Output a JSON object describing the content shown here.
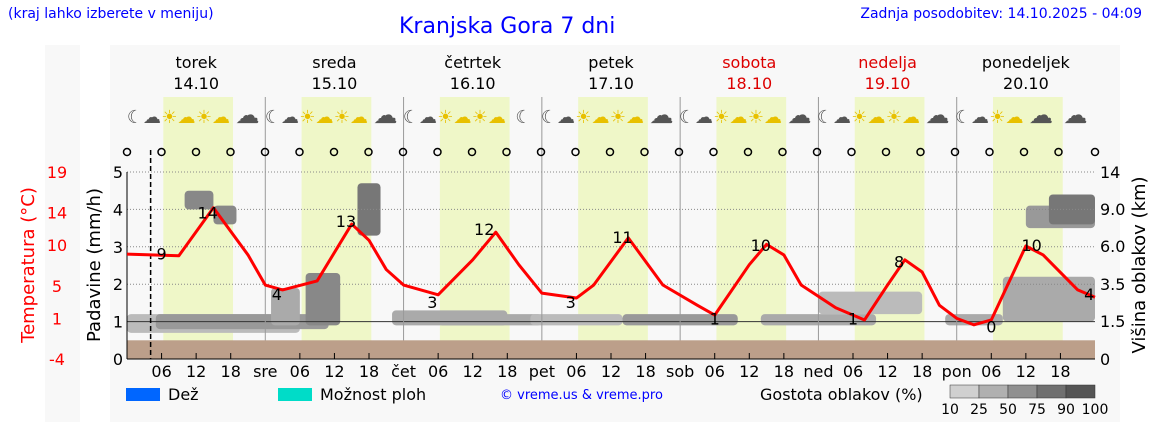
{
  "header": {
    "hint": "(kraj lahko izberete v meniju)",
    "title": "Kranjska Gora 7 dni",
    "updated": "Zadnja posodobitev: 14.10.2025 - 04:09"
  },
  "days": [
    {
      "name": "torek",
      "date": "14.10",
      "weekend": false,
      "short": ""
    },
    {
      "name": "sreda",
      "date": "15.10",
      "weekend": false,
      "short": "sre"
    },
    {
      "name": "četrtek",
      "date": "16.10",
      "weekend": false,
      "short": "čet"
    },
    {
      "name": "petek",
      "date": "17.10",
      "weekend": false,
      "short": "pet"
    },
    {
      "name": "sobota",
      "date": "18.10",
      "weekend": true,
      "short": "sob"
    },
    {
      "name": "nedelja",
      "date": "19.10",
      "weekend": true,
      "short": "ned"
    },
    {
      "name": "ponedeljek",
      "date": "20.10",
      "weekend": false,
      "short": "pon"
    }
  ],
  "icons": [
    "moon-cloud",
    "sun-cloud",
    "sun-cloud",
    "cloud",
    "moon-cloud",
    "sun-cloud",
    "sun-cloud",
    "cloud",
    "moon-cloud",
    "sun-cloud",
    "sun-cloud",
    "moon",
    "moon-cloud",
    "sun-cloud",
    "sun-cloud",
    "cloud",
    "moon-cloud",
    "sun-cloud",
    "sun-cloud",
    "cloud",
    "moon-cloud",
    "sun-cloud",
    "sun-cloud",
    "cloud",
    "moon-cloud",
    "sun-cloud",
    "cloud",
    "cloud"
  ],
  "legend": {
    "rain": "Dež",
    "storm": "Možnost ploh",
    "credit": "© vreme.us & vreme.pro",
    "density": "Gostota oblakov (%)",
    "scale": [
      "10",
      "25",
      "50",
      "75",
      "90",
      "100"
    ]
  },
  "colors": {
    "rain": "#0066ff",
    "storm": "#00dcc8",
    "temp": "#ff0000",
    "ground": "#bc9f8a",
    "dayband": "#eff7c8"
  },
  "chart_data": {
    "type": "line",
    "title": "Kranjska Gora 7 dni",
    "ylabel_left_temp": "Temperatura (°C)",
    "ylabel_left_precip": "Padavine (mm/h)",
    "ylabel_right": "Višina oblakov (km)",
    "temp_ticks": [
      "19",
      "14",
      "10",
      "5",
      "1",
      "-4"
    ],
    "temp_range": [
      -4,
      19
    ],
    "precip_ticks": [
      "0",
      "1",
      "2",
      "3",
      "4",
      "5"
    ],
    "precip_range": [
      0,
      5
    ],
    "cloud_ticks": [
      "0",
      "1.5",
      "3.5",
      "6.0",
      "9.0",
      "14"
    ],
    "hour_ticks": [
      "06",
      "12",
      "18"
    ],
    "x_hours_range": [
      0,
      168
    ],
    "now_hour": 4.1,
    "temperature": {
      "h": [
        0,
        9,
        15,
        21,
        24,
        27,
        33,
        39,
        42,
        45,
        48,
        54,
        60,
        64,
        68,
        72,
        78,
        81,
        87,
        93,
        99,
        102,
        108,
        111,
        114,
        117,
        123,
        128,
        132,
        135,
        138,
        141,
        144,
        147,
        150,
        156,
        159,
        165,
        168
      ],
      "t": [
        8.9,
        8.7,
        14.6,
        8.8,
        5.1,
        4.5,
        5.6,
        12.6,
        10.6,
        7,
        5.1,
        3.9,
        8.2,
        11.6,
        7.6,
        4.1,
        3.5,
        5.1,
        10.9,
        5.1,
        2.6,
        1.4,
        7.6,
        10.1,
        8.8,
        5.1,
        2.3,
        0.8,
        5.1,
        8.2,
        6.7,
        2.6,
        1,
        0.2,
        0.8,
        9.9,
        8.8,
        4.5,
        3.6
      ]
    },
    "labels": [
      {
        "h": 6,
        "t": 9,
        "text": "9"
      },
      {
        "h": 14,
        "t": 14,
        "text": "14"
      },
      {
        "h": 26,
        "t": 4,
        "text": "4"
      },
      {
        "h": 38,
        "t": 13,
        "text": "13"
      },
      {
        "h": 53,
        "t": 3,
        "text": "3"
      },
      {
        "h": 62,
        "t": 12,
        "text": "12"
      },
      {
        "h": 77,
        "t": 3,
        "text": "3"
      },
      {
        "h": 86,
        "t": 11,
        "text": "11"
      },
      {
        "h": 102,
        "t": 1,
        "text": "1"
      },
      {
        "h": 110,
        "t": 10,
        "text": "10"
      },
      {
        "h": 126,
        "t": 1,
        "text": "1"
      },
      {
        "h": 134,
        "t": 8,
        "text": "8"
      },
      {
        "h": 150,
        "t": 0,
        "text": "0"
      },
      {
        "h": 157,
        "t": 10,
        "text": "10"
      },
      {
        "h": 167,
        "t": 4,
        "text": "4"
      }
    ]
  }
}
